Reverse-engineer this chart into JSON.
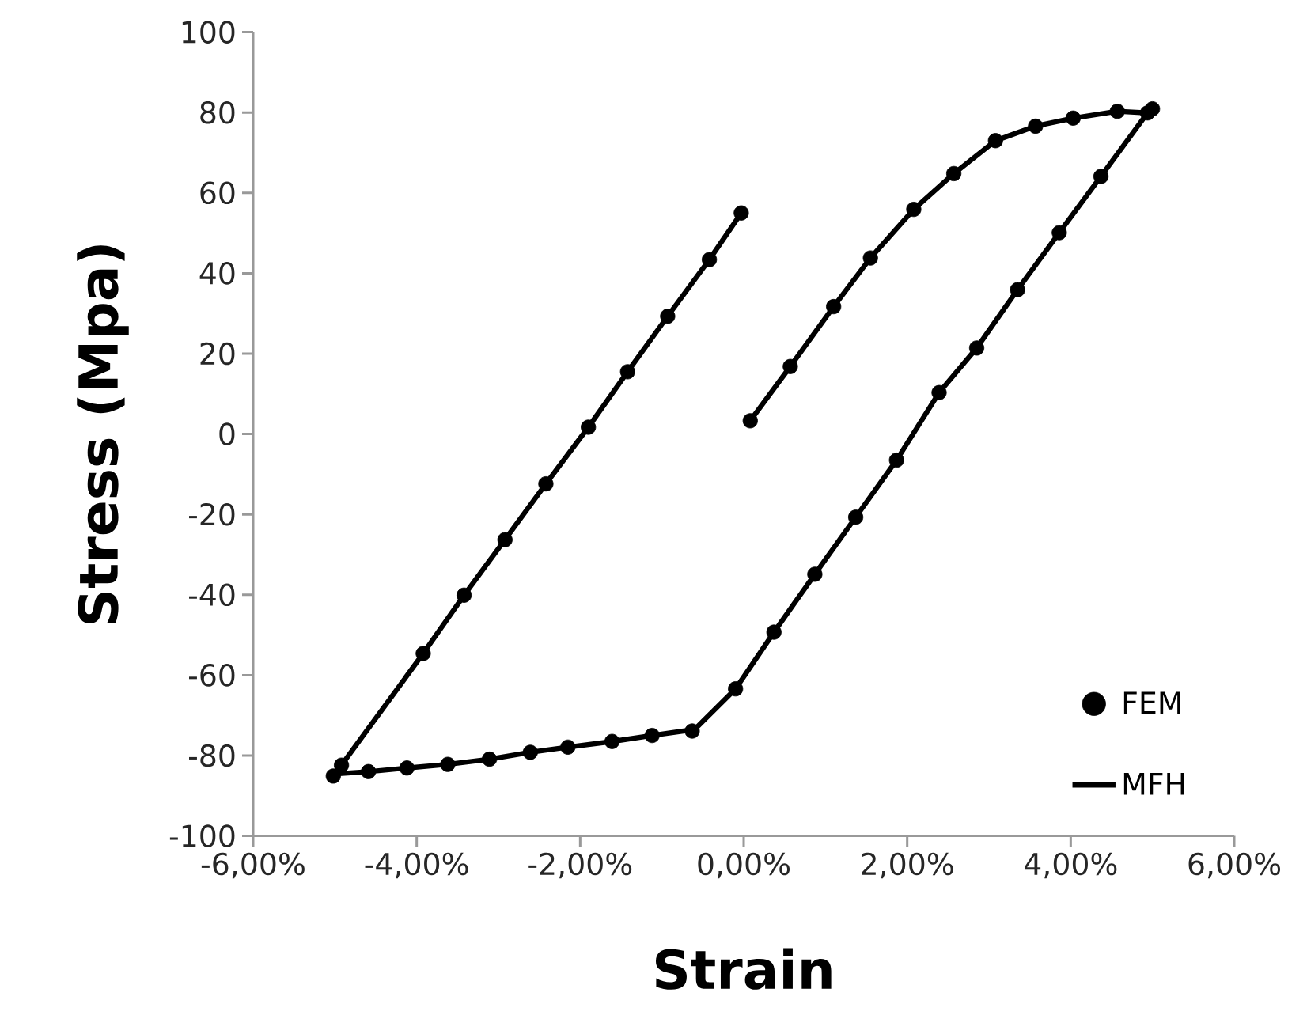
{
  "chart_data": {
    "type": "scatter",
    "xlabel": "Strain",
    "ylabel": "Stress (Mpa)",
    "xlim": [
      -6,
      6
    ],
    "ylim": [
      -100,
      100
    ],
    "xticks": [
      {
        "value": -6,
        "label": "-6,00%"
      },
      {
        "value": -4,
        "label": "-4,00%"
      },
      {
        "value": -2,
        "label": "-2,00%"
      },
      {
        "value": 0,
        "label": "0,00%"
      },
      {
        "value": 2,
        "label": "2,00%"
      },
      {
        "value": 4,
        "label": "4,00%"
      },
      {
        "value": 6,
        "label": "6,00%"
      }
    ],
    "yticks": [
      -100,
      -80,
      -60,
      -40,
      -20,
      0,
      20,
      40,
      60,
      80,
      100
    ],
    "legend": "bottom right",
    "series": [
      {
        "name": "FEM",
        "type": "scatter",
        "marker": "circle",
        "color": "#000000",
        "x": [
          0.08,
          0.57,
          1.1,
          1.55,
          2.08,
          2.57,
          3.08,
          3.57,
          4.03,
          4.57,
          4.94,
          5.0,
          4.37,
          3.86,
          3.35,
          2.85,
          2.39,
          1.87,
          1.37,
          0.87,
          0.37,
          -0.1,
          -0.63,
          -1.12,
          -1.61,
          -2.15,
          -2.61,
          -3.11,
          -3.62,
          -4.12,
          -4.59,
          -5.02,
          -4.92,
          -3.92,
          -3.42,
          -2.92,
          -2.42,
          -1.9,
          -1.42,
          -0.93,
          -0.42,
          -0.03
        ],
        "values": [
          3.3,
          16.8,
          31.7,
          43.8,
          55.9,
          64.8,
          73.0,
          76.6,
          78.6,
          80.3,
          79.9,
          80.9,
          64.1,
          50.1,
          35.9,
          21.4,
          10.3,
          -6.5,
          -20.7,
          -34.9,
          -49.3,
          -63.4,
          -73.9,
          -75.0,
          -76.5,
          -77.9,
          -79.2,
          -80.9,
          -82.2,
          -83.1,
          -84.0,
          -85.1,
          -82.4,
          -54.6,
          -40.1,
          -26.3,
          -12.4,
          1.7,
          15.5,
          29.3,
          43.4,
          55.0
        ]
      },
      {
        "name": "MFH",
        "type": "line",
        "marker": "none",
        "line_style": "solid",
        "color": "#000000",
        "x": [
          0.08,
          0.57,
          1.1,
          1.55,
          2.08,
          2.57,
          3.08,
          3.57,
          4.03,
          4.57,
          4.94,
          4.37,
          3.86,
          3.35,
          2.85,
          2.39,
          1.87,
          1.37,
          0.87,
          0.37,
          -0.1,
          -0.6,
          -1.12,
          -1.61,
          -2.15,
          -2.61,
          -3.11,
          -3.62,
          -4.12,
          -4.59,
          -4.95,
          -4.92,
          -3.92,
          -3.42,
          -2.92,
          -2.42,
          -1.9,
          -1.42,
          -0.93,
          -0.42,
          -0.03
        ],
        "values": [
          3.3,
          16.8,
          31.7,
          43.8,
          55.9,
          64.8,
          73.0,
          76.6,
          78.6,
          80.3,
          79.9,
          64.1,
          50.1,
          35.9,
          21.4,
          10.3,
          -6.5,
          -20.7,
          -34.9,
          -49.3,
          -63.4,
          -73.5,
          -75.0,
          -76.5,
          -77.9,
          -79.2,
          -80.9,
          -82.2,
          -83.1,
          -84.0,
          -84.5,
          -82.4,
          -54.6,
          -40.1,
          -26.3,
          -12.4,
          1.7,
          15.5,
          29.3,
          43.4,
          55.0
        ]
      }
    ]
  }
}
